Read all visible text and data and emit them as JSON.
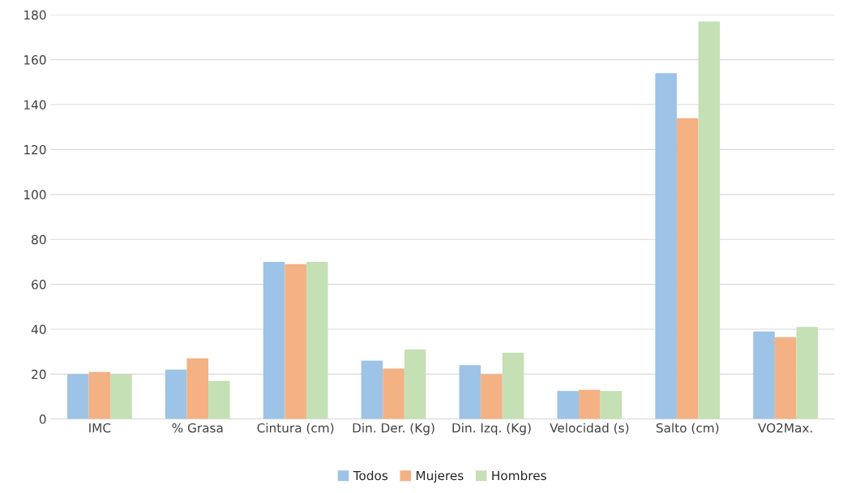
{
  "chart_data": {
    "type": "bar",
    "categories": [
      "IMC",
      "% Grasa",
      "Cintura (cm)",
      "Din. Der. (Kg)",
      "Din. Izq. (Kg)",
      "Velocidad (s)",
      "Salto (cm)",
      "VO2Max."
    ],
    "series": [
      {
        "name": "Todos",
        "color": "#9dc3e6",
        "values": [
          20,
          22,
          70,
          26,
          24,
          12.5,
          154,
          39
        ]
      },
      {
        "name": "Mujeres",
        "color": "#f4b183",
        "values": [
          21,
          27,
          69,
          22.5,
          20,
          13,
          134,
          36.5
        ]
      },
      {
        "name": "Hombres",
        "color": "#c5e0b4",
        "values": [
          20,
          17,
          70,
          31,
          29.5,
          12.5,
          177,
          41
        ]
      }
    ],
    "ylim": [
      0,
      180
    ],
    "yticks": [
      0,
      20,
      40,
      60,
      80,
      100,
      120,
      140,
      160,
      180
    ],
    "grid": "y",
    "legend": "bottom"
  }
}
